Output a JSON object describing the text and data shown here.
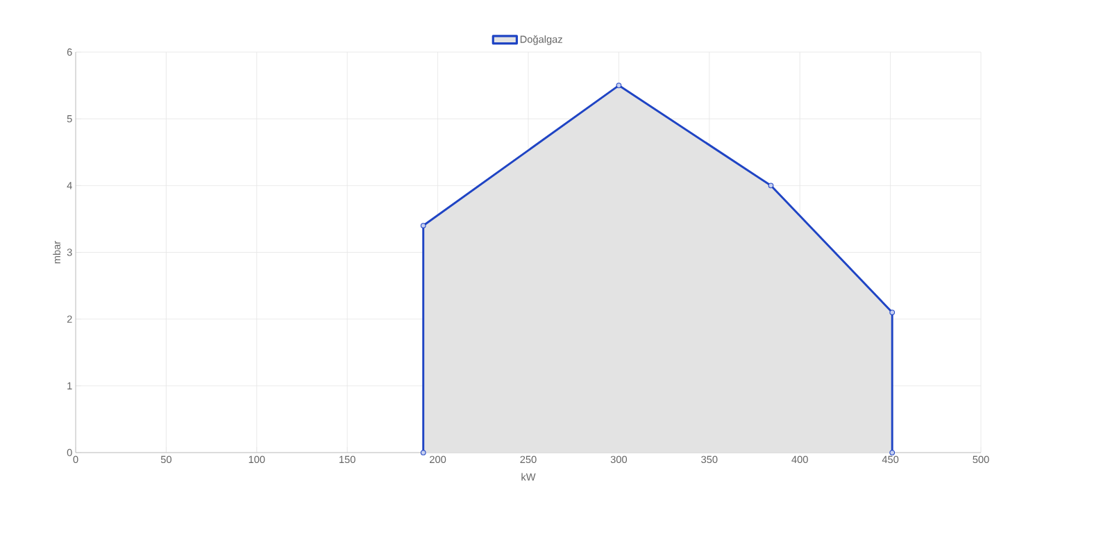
{
  "chart_data": {
    "type": "area",
    "xlabel": "kW",
    "ylabel": "mbar",
    "series": [
      {
        "name": "Doğalgaz",
        "color": "#1f44c4",
        "x": [
          192,
          192,
          300,
          384,
          451,
          451
        ],
        "values": [
          0,
          3.4,
          5.5,
          4.0,
          2.1,
          0
        ]
      }
    ],
    "xlim": [
      0,
      500
    ],
    "ylim": [
      0,
      6
    ],
    "xticks": [
      0,
      50,
      100,
      150,
      200,
      250,
      300,
      350,
      400,
      450,
      500
    ],
    "yticks": [
      0,
      1,
      2,
      3,
      4,
      5,
      6
    ],
    "grid": true,
    "legend": "top",
    "marker": "circle",
    "line_style": "solid"
  }
}
